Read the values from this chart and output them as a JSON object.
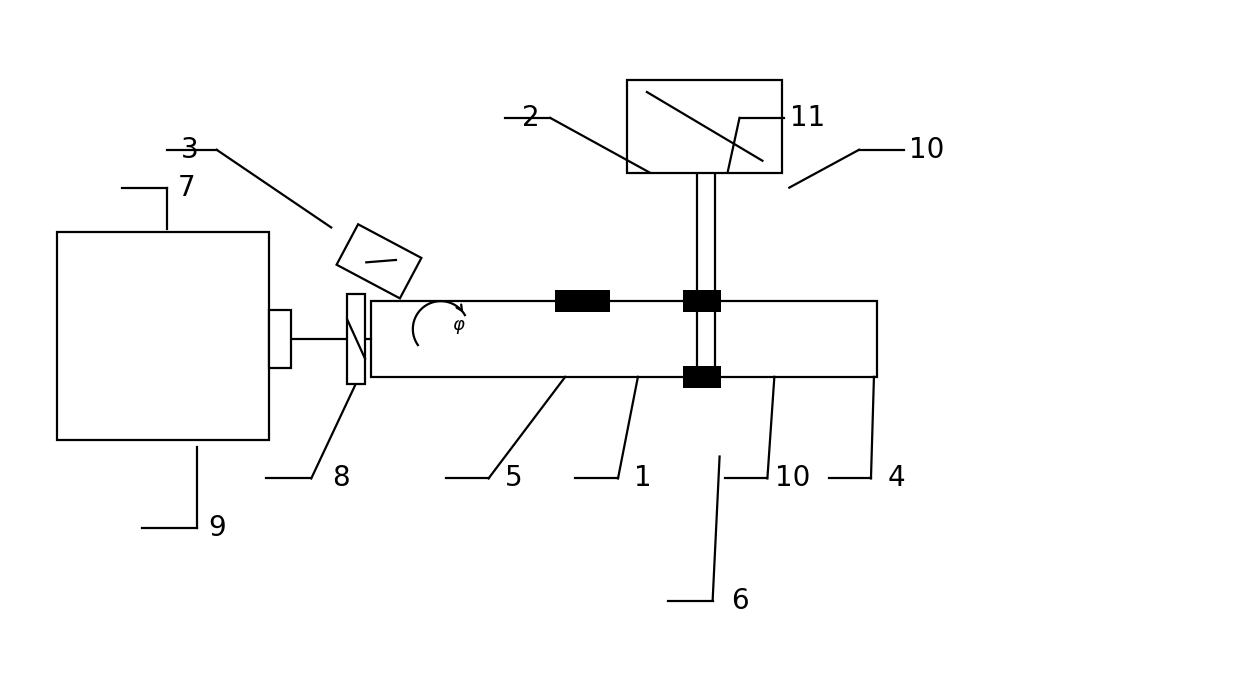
{
  "bg_color": "#ffffff",
  "lc": "#000000",
  "fig_width": 12.4,
  "fig_height": 6.77,
  "dpi": 100,
  "label_fontsize": 20,
  "lw": 1.6
}
